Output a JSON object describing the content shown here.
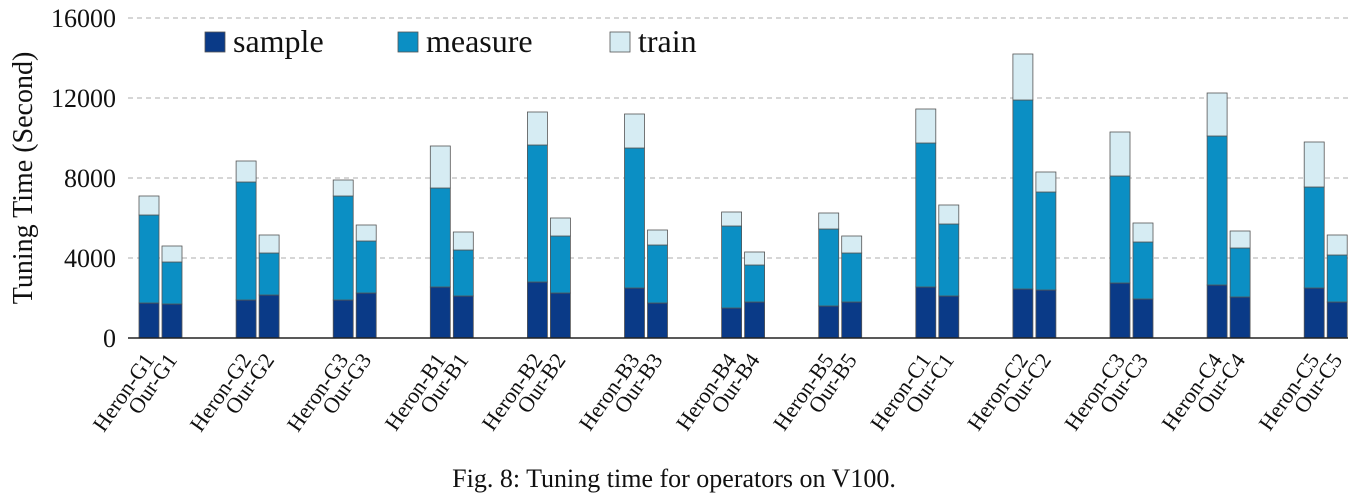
{
  "caption": "Fig. 8: Tuning time for operators on V100.",
  "chart_data": {
    "type": "bar",
    "stacked": true,
    "ylabel": "Tuning Time (Second)",
    "ylim": [
      0,
      16000
    ],
    "yticks": [
      0,
      4000,
      8000,
      12000,
      16000
    ],
    "grid": "horizontal-dashed",
    "legend_position": "top-left",
    "categories": [
      "Heron-G1",
      "Our-G1",
      "Heron-G2",
      "Our-G2",
      "Heron-G3",
      "Our-G3",
      "Heron-B1",
      "Our-B1",
      "Heron-B2",
      "Our-B2",
      "Heron-B3",
      "Our-B3",
      "Heron-B4",
      "Our-B4",
      "Heron-B5",
      "Our-B5",
      "Heron-C1",
      "Our-C1",
      "Heron-C2",
      "Our-C2",
      "Heron-C3",
      "Our-C3",
      "Heron-C4",
      "Our-C4",
      "Heron-C5",
      "Our-C5"
    ],
    "series": [
      {
        "name": "sample",
        "color": "#0a3a87",
        "values": [
          1750,
          1700,
          1900,
          2150,
          1900,
          2250,
          2550,
          2100,
          2800,
          2250,
          2500,
          1750,
          1500,
          1800,
          1600,
          1800,
          2550,
          2100,
          2450,
          2400,
          2750,
          1950,
          2650,
          2050,
          2500,
          1800
        ]
      },
      {
        "name": "measure",
        "color": "#0b8fc4",
        "values": [
          4400,
          2100,
          5900,
          2100,
          5200,
          2600,
          4950,
          2300,
          6850,
          2850,
          7000,
          2900,
          4100,
          1850,
          3850,
          2450,
          7200,
          3600,
          9450,
          4900,
          5350,
          2850,
          7450,
          2450,
          5050,
          2350
        ]
      },
      {
        "name": "train",
        "color": "#d6ecf3",
        "values": [
          950,
          800,
          1050,
          900,
          800,
          800,
          2100,
          900,
          1650,
          900,
          1700,
          750,
          700,
          650,
          800,
          850,
          1700,
          950,
          2300,
          1000,
          2200,
          950,
          2150,
          850,
          2250,
          1000
        ]
      }
    ]
  }
}
